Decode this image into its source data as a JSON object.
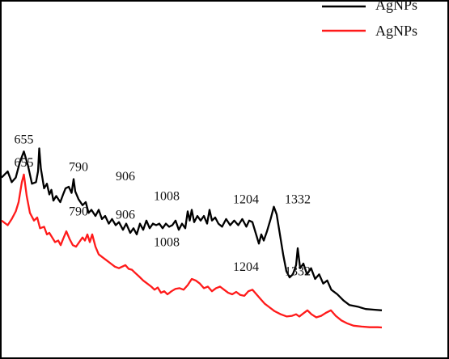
{
  "chart_data": {
    "type": "line",
    "title": "",
    "xlabel": "",
    "ylabel": "",
    "xlim": [
      600,
      1700
    ],
    "ylim": [
      0,
      1
    ],
    "grid": false,
    "legend_position": "top-right",
    "series": [
      {
        "name": "AgNPs",
        "color": "#000000",
        "peak_labels": [
          "655",
          "790",
          "906",
          "1008",
          "1204",
          "1332"
        ],
        "points": [
          [
            600,
            0.58
          ],
          [
            615,
            0.6
          ],
          [
            625,
            0.565
          ],
          [
            635,
            0.58
          ],
          [
            645,
            0.63
          ],
          [
            655,
            0.665
          ],
          [
            665,
            0.62
          ],
          [
            675,
            0.56
          ],
          [
            685,
            0.565
          ],
          [
            690,
            0.6
          ],
          [
            693,
            0.675
          ],
          [
            697,
            0.61
          ],
          [
            705,
            0.545
          ],
          [
            712,
            0.56
          ],
          [
            718,
            0.525
          ],
          [
            723,
            0.54
          ],
          [
            728,
            0.505
          ],
          [
            735,
            0.52
          ],
          [
            745,
            0.5
          ],
          [
            752,
            0.525
          ],
          [
            758,
            0.545
          ],
          [
            766,
            0.55
          ],
          [
            773,
            0.53
          ],
          [
            778,
            0.575
          ],
          [
            782,
            0.535
          ],
          [
            790,
            0.51
          ],
          [
            800,
            0.49
          ],
          [
            808,
            0.5
          ],
          [
            815,
            0.465
          ],
          [
            822,
            0.475
          ],
          [
            832,
            0.455
          ],
          [
            840,
            0.475
          ],
          [
            848,
            0.445
          ],
          [
            856,
            0.455
          ],
          [
            865,
            0.43
          ],
          [
            873,
            0.445
          ],
          [
            882,
            0.425
          ],
          [
            890,
            0.435
          ],
          [
            900,
            0.41
          ],
          [
            908,
            0.43
          ],
          [
            918,
            0.4
          ],
          [
            926,
            0.415
          ],
          [
            934,
            0.395
          ],
          [
            942,
            0.43
          ],
          [
            950,
            0.41
          ],
          [
            958,
            0.44
          ],
          [
            966,
            0.415
          ],
          [
            974,
            0.43
          ],
          [
            982,
            0.425
          ],
          [
            990,
            0.43
          ],
          [
            998,
            0.415
          ],
          [
            1006,
            0.43
          ],
          [
            1014,
            0.42
          ],
          [
            1022,
            0.425
          ],
          [
            1030,
            0.44
          ],
          [
            1038,
            0.41
          ],
          [
            1046,
            0.43
          ],
          [
            1054,
            0.415
          ],
          [
            1060,
            0.47
          ],
          [
            1065,
            0.44
          ],
          [
            1070,
            0.475
          ],
          [
            1076,
            0.435
          ],
          [
            1084,
            0.455
          ],
          [
            1092,
            0.44
          ],
          [
            1100,
            0.455
          ],
          [
            1108,
            0.43
          ],
          [
            1114,
            0.475
          ],
          [
            1120,
            0.44
          ],
          [
            1128,
            0.45
          ],
          [
            1136,
            0.43
          ],
          [
            1145,
            0.42
          ],
          [
            1155,
            0.445
          ],
          [
            1165,
            0.425
          ],
          [
            1175,
            0.44
          ],
          [
            1185,
            0.425
          ],
          [
            1195,
            0.445
          ],
          [
            1205,
            0.42
          ],
          [
            1212,
            0.44
          ],
          [
            1220,
            0.435
          ],
          [
            1228,
            0.4
          ],
          [
            1236,
            0.365
          ],
          [
            1242,
            0.395
          ],
          [
            1248,
            0.375
          ],
          [
            1256,
            0.405
          ],
          [
            1265,
            0.445
          ],
          [
            1273,
            0.485
          ],
          [
            1280,
            0.46
          ],
          [
            1288,
            0.395
          ],
          [
            1296,
            0.33
          ],
          [
            1304,
            0.275
          ],
          [
            1312,
            0.255
          ],
          [
            1320,
            0.265
          ],
          [
            1328,
            0.295
          ],
          [
            1332,
            0.35
          ],
          [
            1338,
            0.285
          ],
          [
            1346,
            0.3
          ],
          [
            1355,
            0.265
          ],
          [
            1365,
            0.285
          ],
          [
            1375,
            0.25
          ],
          [
            1385,
            0.265
          ],
          [
            1395,
            0.235
          ],
          [
            1405,
            0.245
          ],
          [
            1415,
            0.215
          ],
          [
            1430,
            0.2
          ],
          [
            1445,
            0.18
          ],
          [
            1460,
            0.165
          ],
          [
            1480,
            0.16
          ],
          [
            1500,
            0.152
          ],
          [
            1520,
            0.15
          ],
          [
            1540,
            0.148
          ]
        ]
      },
      {
        "name": "AgNPs",
        "color": "#ff1a1a",
        "peak_labels": [
          "655",
          "790",
          "906",
          "1008",
          "1204",
          "1332"
        ],
        "points": [
          [
            600,
            0.44
          ],
          [
            615,
            0.425
          ],
          [
            625,
            0.445
          ],
          [
            635,
            0.47
          ],
          [
            642,
            0.5
          ],
          [
            650,
            0.565
          ],
          [
            655,
            0.59
          ],
          [
            662,
            0.52
          ],
          [
            670,
            0.465
          ],
          [
            680,
            0.44
          ],
          [
            688,
            0.45
          ],
          [
            695,
            0.415
          ],
          [
            705,
            0.42
          ],
          [
            712,
            0.395
          ],
          [
            718,
            0.4
          ],
          [
            725,
            0.385
          ],
          [
            732,
            0.37
          ],
          [
            740,
            0.375
          ],
          [
            746,
            0.36
          ],
          [
            752,
            0.38
          ],
          [
            760,
            0.405
          ],
          [
            768,
            0.38
          ],
          [
            776,
            0.36
          ],
          [
            784,
            0.355
          ],
          [
            792,
            0.37
          ],
          [
            800,
            0.385
          ],
          [
            806,
            0.375
          ],
          [
            812,
            0.395
          ],
          [
            818,
            0.37
          ],
          [
            824,
            0.395
          ],
          [
            832,
            0.355
          ],
          [
            840,
            0.33
          ],
          [
            850,
            0.32
          ],
          [
            860,
            0.31
          ],
          [
            870,
            0.3
          ],
          [
            880,
            0.29
          ],
          [
            890,
            0.285
          ],
          [
            898,
            0.29
          ],
          [
            906,
            0.295
          ],
          [
            914,
            0.283
          ],
          [
            922,
            0.28
          ],
          [
            930,
            0.27
          ],
          [
            940,
            0.258
          ],
          [
            950,
            0.245
          ],
          [
            960,
            0.235
          ],
          [
            970,
            0.225
          ],
          [
            978,
            0.215
          ],
          [
            986,
            0.222
          ],
          [
            994,
            0.205
          ],
          [
            1002,
            0.21
          ],
          [
            1010,
            0.2
          ],
          [
            1020,
            0.21
          ],
          [
            1030,
            0.218
          ],
          [
            1040,
            0.22
          ],
          [
            1050,
            0.215
          ],
          [
            1060,
            0.23
          ],
          [
            1070,
            0.25
          ],
          [
            1080,
            0.245
          ],
          [
            1090,
            0.235
          ],
          [
            1100,
            0.22
          ],
          [
            1110,
            0.225
          ],
          [
            1120,
            0.21
          ],
          [
            1130,
            0.22
          ],
          [
            1140,
            0.225
          ],
          [
            1150,
            0.215
          ],
          [
            1160,
            0.205
          ],
          [
            1170,
            0.2
          ],
          [
            1180,
            0.208
          ],
          [
            1190,
            0.198
          ],
          [
            1200,
            0.195
          ],
          [
            1210,
            0.21
          ],
          [
            1220,
            0.215
          ],
          [
            1230,
            0.2
          ],
          [
            1240,
            0.185
          ],
          [
            1250,
            0.17
          ],
          [
            1262,
            0.158
          ],
          [
            1275,
            0.145
          ],
          [
            1290,
            0.135
          ],
          [
            1305,
            0.128
          ],
          [
            1318,
            0.13
          ],
          [
            1328,
            0.135
          ],
          [
            1336,
            0.128
          ],
          [
            1346,
            0.138
          ],
          [
            1356,
            0.148
          ],
          [
            1366,
            0.135
          ],
          [
            1378,
            0.125
          ],
          [
            1390,
            0.13
          ],
          [
            1402,
            0.14
          ],
          [
            1414,
            0.148
          ],
          [
            1426,
            0.13
          ],
          [
            1440,
            0.115
          ],
          [
            1455,
            0.105
          ],
          [
            1470,
            0.098
          ],
          [
            1490,
            0.095
          ],
          [
            1510,
            0.093
          ],
          [
            1530,
            0.093
          ],
          [
            1540,
            0.092
          ]
        ]
      }
    ],
    "peak_annotations": [
      {
        "series": 0,
        "label": "655",
        "x": 655,
        "y": 0.665
      },
      {
        "series": 0,
        "label": "790",
        "x": 790,
        "y": 0.575
      },
      {
        "series": 0,
        "label": "906",
        "x": 906,
        "y": 0.545
      },
      {
        "series": 0,
        "label": "1008",
        "x": 1008,
        "y": 0.48
      },
      {
        "series": 0,
        "label": "1204",
        "x": 1204,
        "y": 0.47
      },
      {
        "series": 0,
        "label": "1332",
        "x": 1332,
        "y": 0.47
      },
      {
        "series": 1,
        "label": "655",
        "x": 655,
        "y": 0.59
      },
      {
        "series": 1,
        "label": "790",
        "x": 790,
        "y": 0.43
      },
      {
        "series": 1,
        "label": "906",
        "x": 906,
        "y": 0.42
      },
      {
        "series": 1,
        "label": "1008",
        "x": 1008,
        "y": 0.33
      },
      {
        "series": 1,
        "label": "1204",
        "x": 1204,
        "y": 0.25
      },
      {
        "series": 1,
        "label": "1332",
        "x": 1332,
        "y": 0.235
      }
    ]
  },
  "legend": {
    "items": [
      {
        "label": "AgNPs",
        "color": "#000000"
      },
      {
        "label": "AgNPs",
        "color": "#ff1a1a"
      }
    ]
  }
}
